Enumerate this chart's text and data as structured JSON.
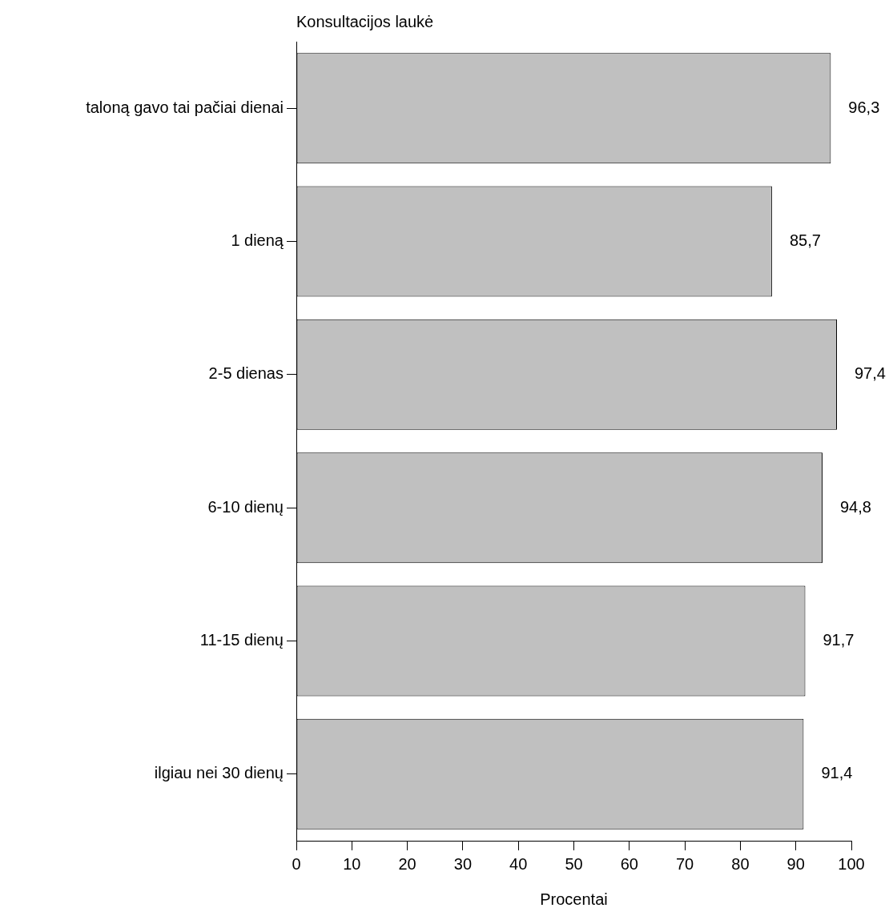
{
  "chart_data": {
    "type": "bar",
    "orientation": "horizontal",
    "ylabel": "Konsultacijos laukė",
    "xlabel": "Procentai",
    "categories": [
      "taloną gavo tai pačiai dienai",
      "1 dieną",
      "2-5 dienas",
      "6-10 dienų",
      "11-15 dienų",
      "ilgiau nei 30 dienų"
    ],
    "values": [
      96.3,
      85.7,
      97.4,
      94.8,
      91.7,
      91.4
    ],
    "value_labels": [
      "96,3",
      "85,7",
      "97,4",
      "94,8",
      "91,7",
      "91,4"
    ],
    "color": "#c0c0c0",
    "xlim": [
      0,
      100
    ],
    "xticks": [
      0,
      10,
      20,
      30,
      40,
      50,
      60,
      70,
      80,
      90,
      100
    ],
    "grid": false,
    "legend": false
  }
}
